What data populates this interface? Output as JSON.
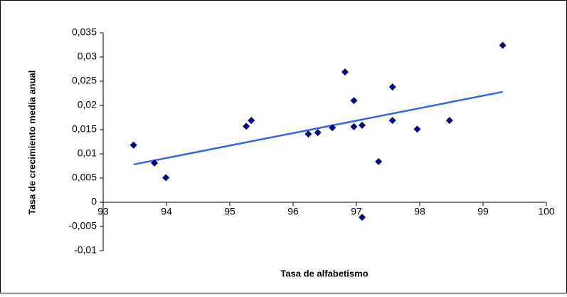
{
  "chart_data": {
    "type": "scatter",
    "x_label": "Tasa de alfabetismo",
    "y_label": "Tasa de crecimiento media anual",
    "series": [
      {
        "color": "#000080",
        "x": [
          93.48,
          93.81,
          93.99,
          95.26,
          95.34,
          96.24,
          96.39,
          96.62,
          96.82,
          96.96,
          96.96,
          97.09,
          97.09,
          97.35,
          97.57,
          97.57,
          97.96,
          98.47,
          99.31
        ],
        "values": [
          0.0118,
          0.0081,
          0.0051,
          0.0157,
          0.0169,
          0.0141,
          0.0144,
          0.0154,
          0.0269,
          0.021,
          0.0156,
          0.0159,
          -0.0031,
          0.0084,
          0.0238,
          0.0169,
          0.0151,
          0.0169,
          0.0324
        ]
      }
    ],
    "trendline": {
      "color": "#3366dd",
      "x": [
        93.48,
        99.31
      ],
      "values": [
        0.0078,
        0.0228
      ]
    },
    "xlim": [
      93,
      100
    ],
    "xticks": [
      93,
      94,
      95,
      96,
      97,
      98,
      99,
      100
    ],
    "ylim": [
      -0.01,
      0.035
    ],
    "yticks": [
      {
        "value": -0.01,
        "label": "-0,01"
      },
      {
        "value": -0.005,
        "label": "-0,005"
      },
      0,
      {
        "value": 0.005,
        "label": "0,005"
      },
      {
        "value": 0.01,
        "label": "0,01"
      },
      {
        "value": 0.015,
        "label": "0,015"
      },
      {
        "value": 0.02,
        "label": "0,02"
      },
      {
        "value": 0.025,
        "label": "0,025"
      },
      {
        "value": 0.03,
        "label": "0,03"
      },
      {
        "value": 0.035,
        "label": "0,035"
      }
    ]
  }
}
